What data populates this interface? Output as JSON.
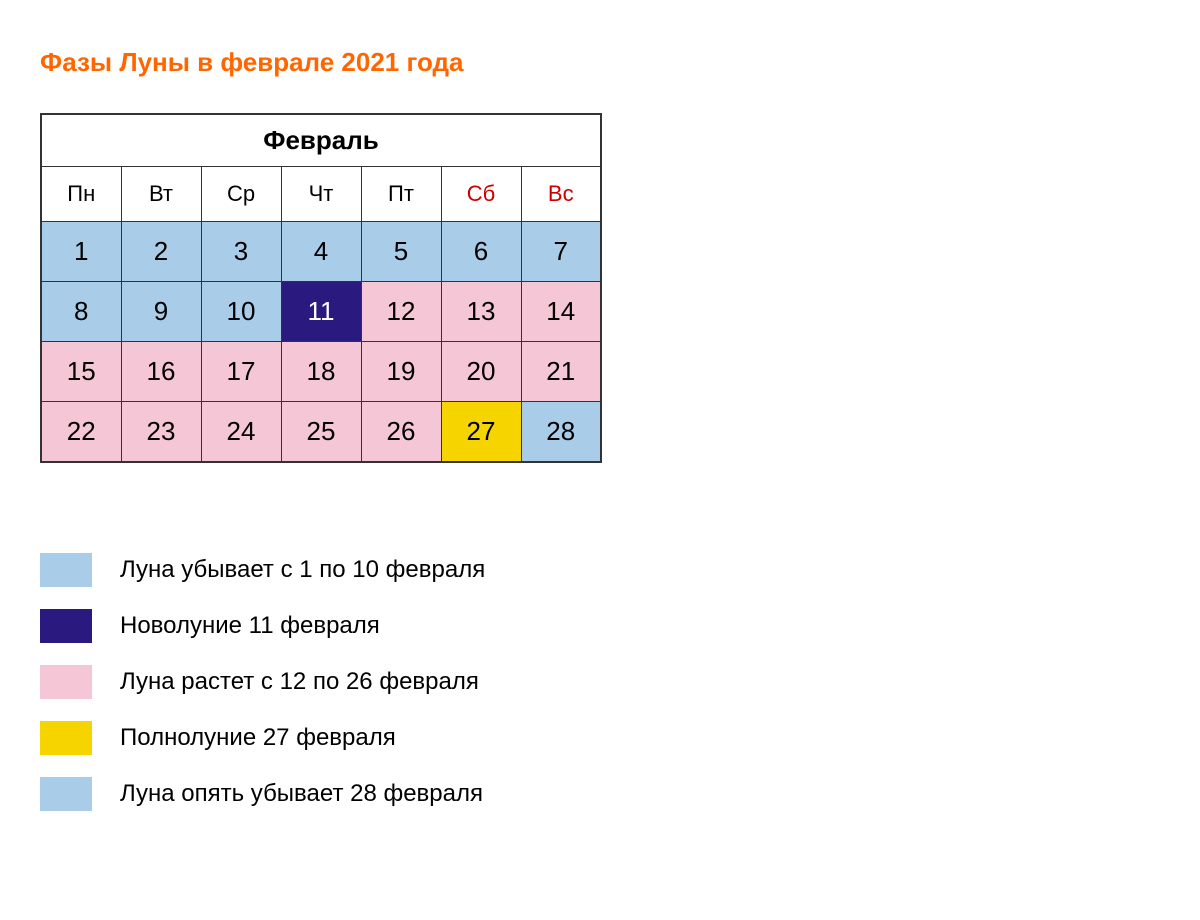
{
  "title": "Фазы Луны в феврале 2021 года",
  "title_color": "#ff6600",
  "calendar": {
    "month_label": "Февраль",
    "day_headers": [
      {
        "label": "Пн",
        "color": "#000000"
      },
      {
        "label": "Вт",
        "color": "#000000"
      },
      {
        "label": "Ср",
        "color": "#000000"
      },
      {
        "label": "Чт",
        "color": "#000000"
      },
      {
        "label": "Пт",
        "color": "#000000"
      },
      {
        "label": "Сб",
        "color": "#cc0000"
      },
      {
        "label": "Вс",
        "color": "#cc0000"
      }
    ],
    "rows": [
      [
        {
          "d": "1",
          "bg": "#a9cce8",
          "fg": "#000000"
        },
        {
          "d": "2",
          "bg": "#a9cce8",
          "fg": "#000000"
        },
        {
          "d": "3",
          "bg": "#a9cce8",
          "fg": "#000000"
        },
        {
          "d": "4",
          "bg": "#a9cce8",
          "fg": "#000000"
        },
        {
          "d": "5",
          "bg": "#a9cce8",
          "fg": "#000000"
        },
        {
          "d": "6",
          "bg": "#a9cce8",
          "fg": "#000000"
        },
        {
          "d": "7",
          "bg": "#a9cce8",
          "fg": "#000000"
        }
      ],
      [
        {
          "d": "8",
          "bg": "#a9cce8",
          "fg": "#000000"
        },
        {
          "d": "9",
          "bg": "#a9cce8",
          "fg": "#000000"
        },
        {
          "d": "10",
          "bg": "#a9cce8",
          "fg": "#000000"
        },
        {
          "d": "11",
          "bg": "#2a1a80",
          "fg": "#ffffff"
        },
        {
          "d": "12",
          "bg": "#f5c6d6",
          "fg": "#000000"
        },
        {
          "d": "13",
          "bg": "#f5c6d6",
          "fg": "#000000"
        },
        {
          "d": "14",
          "bg": "#f5c6d6",
          "fg": "#000000"
        }
      ],
      [
        {
          "d": "15",
          "bg": "#f5c6d6",
          "fg": "#000000"
        },
        {
          "d": "16",
          "bg": "#f5c6d6",
          "fg": "#000000"
        },
        {
          "d": "17",
          "bg": "#f5c6d6",
          "fg": "#000000"
        },
        {
          "d": "18",
          "bg": "#f5c6d6",
          "fg": "#000000"
        },
        {
          "d": "19",
          "bg": "#f5c6d6",
          "fg": "#000000"
        },
        {
          "d": "20",
          "bg": "#f5c6d6",
          "fg": "#000000"
        },
        {
          "d": "21",
          "bg": "#f5c6d6",
          "fg": "#000000"
        }
      ],
      [
        {
          "d": "22",
          "bg": "#f5c6d6",
          "fg": "#000000"
        },
        {
          "d": "23",
          "bg": "#f5c6d6",
          "fg": "#000000"
        },
        {
          "d": "24",
          "bg": "#f5c6d6",
          "fg": "#000000"
        },
        {
          "d": "25",
          "bg": "#f5c6d6",
          "fg": "#000000"
        },
        {
          "d": "26",
          "bg": "#f5c6d6",
          "fg": "#000000"
        },
        {
          "d": "27",
          "bg": "#f5d400",
          "fg": "#000000"
        },
        {
          "d": "28",
          "bg": "#a9cce8",
          "fg": "#000000"
        }
      ]
    ]
  },
  "legend": [
    {
      "swatch": "#a9cce8",
      "text": "Луна убывает с 1 по 10 февраля"
    },
    {
      "swatch": "#2a1a80",
      "text": "Новолуние 11 февраля"
    },
    {
      "swatch": "#f5c6d6",
      "text": "Луна растет с 12 по 26 февраля"
    },
    {
      "swatch": "#f5d400",
      "text": "Полнолуние 27 февраля"
    },
    {
      "swatch": "#a9cce8",
      "text": "Луна опять убывает 28 февраля"
    }
  ]
}
